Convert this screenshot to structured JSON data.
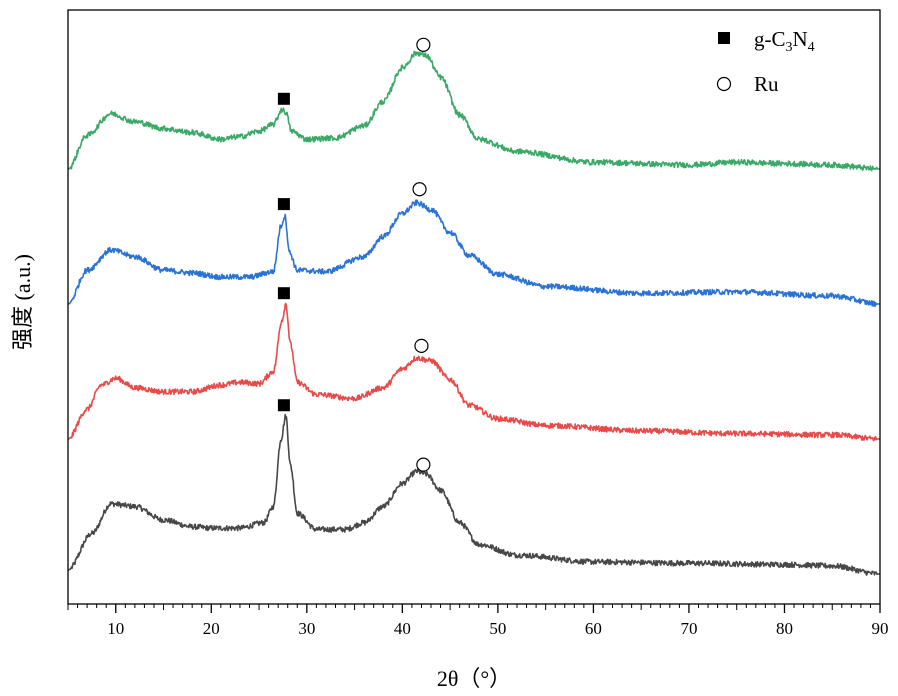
{
  "chart_data": {
    "type": "line",
    "title": "",
    "xlabel": "2θ（°）",
    "ylabel": "强度 (a.u.)",
    "xlim": [
      5,
      90
    ],
    "x_ticks": [
      10,
      20,
      30,
      40,
      50,
      60,
      70,
      80,
      90
    ],
    "x_tick_labels": [
      "10",
      "20",
      "30",
      "40",
      "50",
      "60",
      "70",
      "80",
      "90"
    ],
    "y_ticks_shown": false,
    "legend": {
      "position": "top-right",
      "entries": [
        {
          "marker": "filled-square",
          "label_main": "g-C",
          "sub1": "3",
          "mid": "N",
          "sub2": "4",
          "label": "g-C3N4"
        },
        {
          "marker": "open-circle",
          "label_main": "Ru",
          "label": "Ru"
        }
      ]
    },
    "note": "Patterns are vertically offset; intensity in arbitrary units (0 = baseline of each trace, 1 = trace spacing).",
    "series": [
      {
        "name": "trace-1 (bottom)",
        "color": "#474747",
        "offset": 0,
        "noise": 0.02,
        "profile": [
          [
            5,
            0.03
          ],
          [
            7.5,
            0.3
          ],
          [
            9.5,
            0.52
          ],
          [
            12,
            0.5
          ],
          [
            15,
            0.4
          ],
          [
            18,
            0.35
          ],
          [
            20,
            0.34
          ],
          [
            23,
            0.34
          ],
          [
            25.5,
            0.38
          ],
          [
            26.5,
            0.5
          ],
          [
            27.3,
            1.0
          ],
          [
            27.8,
            1.17
          ],
          [
            28.3,
            0.8
          ],
          [
            29,
            0.45
          ],
          [
            31,
            0.33
          ],
          [
            34,
            0.33
          ],
          [
            36,
            0.38
          ],
          [
            38,
            0.5
          ],
          [
            40,
            0.67
          ],
          [
            41.5,
            0.76
          ],
          [
            42.5,
            0.74
          ],
          [
            44,
            0.62
          ],
          [
            46,
            0.38
          ],
          [
            48,
            0.22
          ],
          [
            52,
            0.14
          ],
          [
            60,
            0.09
          ],
          [
            70,
            0.08
          ],
          [
            80,
            0.07
          ],
          [
            85,
            0.06
          ],
          [
            90,
            0.0
          ]
        ],
        "markers": [
          {
            "x": 27.6,
            "y": 1.25,
            "type": "square"
          },
          {
            "x": 42.2,
            "y": 0.81,
            "type": "circle"
          }
        ]
      },
      {
        "name": "trace-2",
        "color": "#e84a4a",
        "offset": 1,
        "noise": 0.02,
        "profile": [
          [
            5,
            0.0
          ],
          [
            7,
            0.22
          ],
          [
            8.5,
            0.4
          ],
          [
            10,
            0.45
          ],
          [
            12,
            0.38
          ],
          [
            15,
            0.35
          ],
          [
            18,
            0.35
          ],
          [
            21,
            0.4
          ],
          [
            23,
            0.42
          ],
          [
            25,
            0.41
          ],
          [
            26.5,
            0.5
          ],
          [
            27.4,
            0.88
          ],
          [
            27.8,
            1.0
          ],
          [
            28.3,
            0.7
          ],
          [
            29,
            0.42
          ],
          [
            31,
            0.33
          ],
          [
            35,
            0.3
          ],
          [
            38,
            0.38
          ],
          [
            40,
            0.52
          ],
          [
            41.5,
            0.6
          ],
          [
            43,
            0.58
          ],
          [
            45,
            0.44
          ],
          [
            47,
            0.25
          ],
          [
            50,
            0.15
          ],
          [
            55,
            0.1
          ],
          [
            65,
            0.06
          ],
          [
            75,
            0.04
          ],
          [
            85,
            0.03
          ],
          [
            90,
            0.0
          ]
        ],
        "markers": [
          {
            "x": 27.6,
            "y": 1.08,
            "type": "square"
          },
          {
            "x": 42.0,
            "y": 0.69,
            "type": "circle"
          }
        ]
      },
      {
        "name": "trace-3",
        "color": "#2a72d6",
        "offset": 2,
        "noise": 0.02,
        "profile": [
          [
            5,
            0.0
          ],
          [
            7,
            0.25
          ],
          [
            9.5,
            0.4
          ],
          [
            12,
            0.35
          ],
          [
            15,
            0.25
          ],
          [
            18,
            0.23
          ],
          [
            21,
            0.2
          ],
          [
            24,
            0.2
          ],
          [
            26.5,
            0.24
          ],
          [
            27.3,
            0.58
          ],
          [
            27.7,
            0.65
          ],
          [
            28.2,
            0.38
          ],
          [
            29,
            0.25
          ],
          [
            32,
            0.24
          ],
          [
            36,
            0.35
          ],
          [
            38,
            0.5
          ],
          [
            40,
            0.67
          ],
          [
            41.5,
            0.75
          ],
          [
            43,
            0.7
          ],
          [
            45,
            0.53
          ],
          [
            47,
            0.36
          ],
          [
            50,
            0.22
          ],
          [
            55,
            0.13
          ],
          [
            65,
            0.08
          ],
          [
            75,
            0.09
          ],
          [
            85,
            0.06
          ],
          [
            90,
            0.0
          ]
        ],
        "markers": [
          {
            "x": 27.6,
            "y": 0.74,
            "type": "square"
          },
          {
            "x": 41.8,
            "y": 0.85,
            "type": "circle"
          }
        ]
      },
      {
        "name": "trace-4 (top)",
        "color": "#3aa866",
        "offset": 3,
        "noise": 0.02,
        "profile": [
          [
            5,
            0.0
          ],
          [
            7,
            0.25
          ],
          [
            9.5,
            0.41
          ],
          [
            12,
            0.35
          ],
          [
            15,
            0.3
          ],
          [
            18,
            0.27
          ],
          [
            21,
            0.22
          ],
          [
            23,
            0.24
          ],
          [
            25,
            0.28
          ],
          [
            26.5,
            0.33
          ],
          [
            27.4,
            0.44
          ],
          [
            27.8,
            0.42
          ],
          [
            28.4,
            0.28
          ],
          [
            30,
            0.22
          ],
          [
            33,
            0.23
          ],
          [
            36,
            0.32
          ],
          [
            38,
            0.5
          ],
          [
            40,
            0.75
          ],
          [
            41.5,
            0.86
          ],
          [
            42.5,
            0.84
          ],
          [
            44,
            0.68
          ],
          [
            46,
            0.4
          ],
          [
            48,
            0.22
          ],
          [
            52,
            0.13
          ],
          [
            60,
            0.05
          ],
          [
            70,
            0.03
          ],
          [
            75,
            0.05
          ],
          [
            80,
            0.04
          ],
          [
            85,
            0.03
          ],
          [
            90,
            0.0
          ]
        ],
        "markers": [
          {
            "x": 27.6,
            "y": 0.52,
            "type": "square"
          },
          {
            "x": 42.2,
            "y": 0.92,
            "type": "circle"
          }
        ]
      }
    ]
  }
}
